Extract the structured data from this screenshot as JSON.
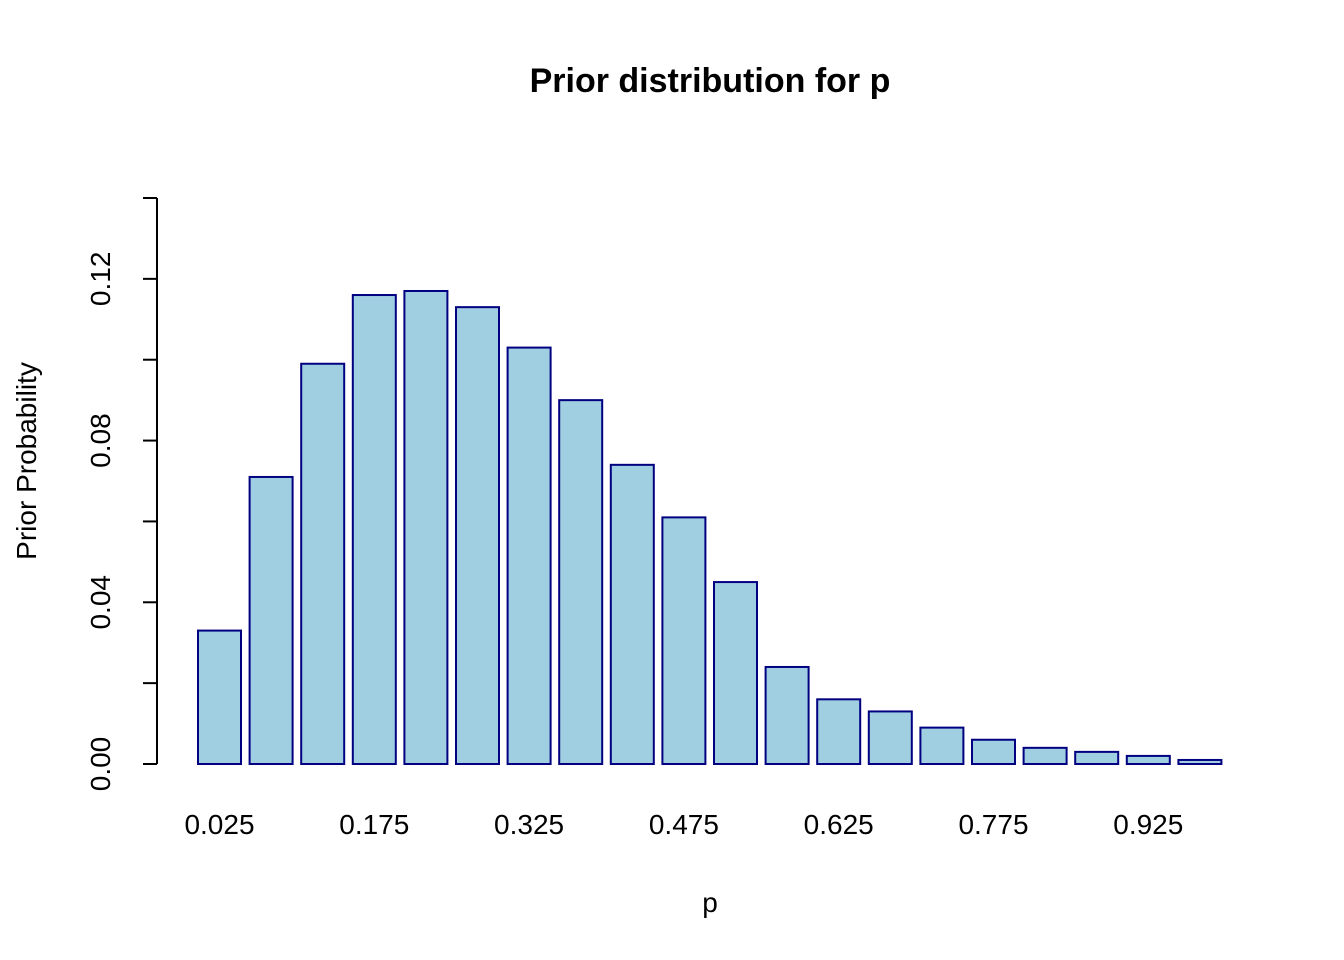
{
  "chart_data": {
    "type": "bar",
    "title": "Prior distribution for p",
    "xlabel": "p",
    "ylabel": "Prior Probability",
    "categories": [
      "0.025",
      "0.075",
      "0.125",
      "0.175",
      "0.225",
      "0.275",
      "0.325",
      "0.375",
      "0.425",
      "0.475",
      "0.525",
      "0.575",
      "0.625",
      "0.675",
      "0.725",
      "0.775",
      "0.825",
      "0.875",
      "0.925",
      "0.975"
    ],
    "x_tick_labels": [
      "0.025",
      "0.175",
      "0.325",
      "0.475",
      "0.625",
      "0.775",
      "0.925"
    ],
    "values": [
      0.033,
      0.071,
      0.099,
      0.116,
      0.117,
      0.113,
      0.103,
      0.09,
      0.074,
      0.061,
      0.045,
      0.024,
      0.016,
      0.013,
      0.009,
      0.006,
      0.004,
      0.003,
      0.002,
      0.001
    ],
    "ylim": [
      0,
      0.14
    ],
    "y_tick_values": [
      0,
      0.02,
      0.04,
      0.06,
      0.08,
      0.1,
      0.12,
      0.14
    ],
    "y_tick_labels": [
      "0.00",
      "",
      "0.04",
      "",
      "0.08",
      "",
      "0.12",
      ""
    ],
    "bar_fill": "#a1cfe2",
    "bar_stroke": "#000080",
    "grid": false,
    "legend": "none"
  }
}
